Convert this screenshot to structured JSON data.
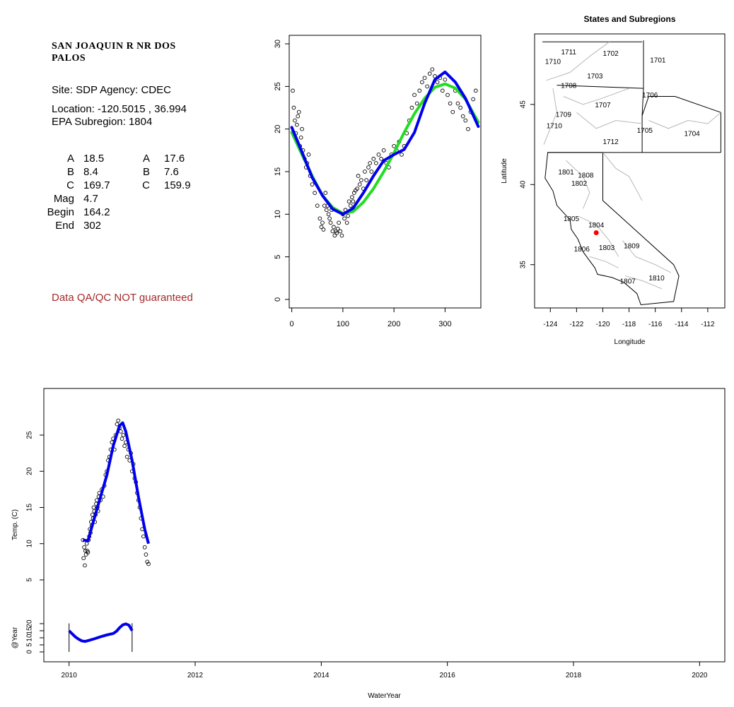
{
  "info": {
    "site_name": "SAN JOAQUIN R NR DOS PALOS",
    "site_line": "Site: SDP     Agency: CDEC",
    "location_line": "Location: -120.5015 , 36.994",
    "subregion_line": "EPA Subregion: 1804",
    "coef_left": [
      {
        "k": "A",
        "v": "18.5"
      },
      {
        "k": "B",
        "v": "8.4"
      },
      {
        "k": "C",
        "v": "169.7"
      },
      {
        "k": "Mag",
        "v": "4.7"
      },
      {
        "k": "Begin",
        "v": "164.2"
      },
      {
        "k": "End",
        "v": "302"
      }
    ],
    "coef_right": [
      {
        "k": "A",
        "v": "17.6"
      },
      {
        "k": "B",
        "v": "7.6"
      },
      {
        "k": "C",
        "v": "159.9"
      }
    ],
    "qa_note": "Data QA/QC NOT guaranteed"
  },
  "chart_data": [
    {
      "type": "scatter",
      "id": "day-of-year-fit",
      "title": "",
      "xlabel": "",
      "ylabel": "",
      "xlim": [
        -5,
        370
      ],
      "ylim": [
        -1,
        31
      ],
      "xticks": [
        0,
        100,
        200,
        300
      ],
      "yticks": [
        0,
        5,
        10,
        15,
        20,
        25,
        30
      ],
      "series": [
        {
          "kind": "points",
          "color": "#000000",
          "x": [
            2,
            4,
            6,
            8,
            10,
            12,
            14,
            16,
            18,
            20,
            22,
            25,
            28,
            30,
            33,
            36,
            40,
            45,
            50,
            55,
            58,
            60,
            62,
            64,
            66,
            68,
            70,
            72,
            74,
            76,
            78,
            80,
            82,
            84,
            86,
            88,
            90,
            92,
            95,
            98,
            100,
            103,
            105,
            108,
            110,
            112,
            115,
            118,
            120,
            122,
            125,
            128,
            130,
            133,
            136,
            140,
            143,
            146,
            150,
            153,
            156,
            160,
            165,
            170,
            175,
            180,
            185,
            190,
            195,
            200,
            205,
            210,
            215,
            220,
            225,
            230,
            235,
            240,
            245,
            250,
            255,
            260,
            265,
            270,
            275,
            280,
            285,
            290,
            295,
            300,
            305,
            310,
            315,
            320,
            325,
            330,
            335,
            340,
            345,
            350,
            355,
            360
          ],
          "y": [
            24.5,
            22.5,
            21,
            19.5,
            20.5,
            21.5,
            22,
            18,
            19,
            20,
            17.5,
            16.5,
            15.5,
            16,
            17,
            14.5,
            13.5,
            12.5,
            11,
            9.5,
            8.5,
            9,
            8.2,
            11,
            12.5,
            10.5,
            11,
            10,
            9.5,
            9,
            10.5,
            8,
            8.5,
            7.5,
            8,
            7.8,
            8.3,
            9,
            8,
            7.5,
            10,
            9.5,
            10.5,
            9,
            9.8,
            11.5,
            11,
            12,
            11.5,
            12.5,
            12.8,
            13,
            14.5,
            13.5,
            14,
            13,
            15,
            14,
            15.5,
            16,
            15,
            16.5,
            16,
            17,
            16.5,
            17.5,
            16,
            15.5,
            17,
            18,
            17.5,
            18.5,
            17,
            18,
            19.5,
            21,
            22.5,
            24,
            23,
            24.5,
            25.5,
            26,
            25,
            26.5,
            27,
            26.2,
            25.5,
            26,
            24.5,
            25.8,
            24,
            23,
            22,
            24.5,
            23,
            22.5,
            21.5,
            21,
            20,
            22,
            23.5,
            24.5
          ]
        },
        {
          "kind": "line",
          "name": "",
          "color": "#22dd22",
          "x": [
            0,
            20,
            40,
            60,
            80,
            100,
            120,
            140,
            160,
            180,
            200,
            220,
            240,
            260,
            280,
            300,
            320,
            340,
            365
          ],
          "y": [
            19.6,
            17.0,
            14.5,
            12.2,
            10.8,
            10.1,
            10.3,
            11.4,
            13.0,
            15.0,
            17.2,
            19.6,
            21.8,
            23.6,
            24.9,
            25.3,
            24.8,
            23.5,
            20.8
          ]
        },
        {
          "kind": "line",
          "name": "",
          "color": "#0000ee",
          "x": [
            0,
            20,
            40,
            60,
            80,
            100,
            120,
            140,
            160,
            180,
            200,
            220,
            240,
            260,
            280,
            300,
            320,
            340,
            365
          ],
          "y": [
            20.2,
            17.3,
            14.3,
            12.2,
            10.6,
            10.0,
            10.7,
            12.5,
            14.5,
            16.3,
            17.0,
            17.6,
            19.6,
            23.0,
            25.8,
            26.7,
            25.5,
            23.6,
            20.3
          ]
        }
      ]
    },
    {
      "type": "map",
      "id": "states-subregions",
      "title": "States and Subregions",
      "xlabel": "Longitude",
      "ylabel": "Latitude",
      "xlim": [
        -125.2,
        -110.7
      ],
      "ylim": [
        32.3,
        49.4
      ],
      "xticks": [
        -124,
        -122,
        -120,
        -118,
        -116,
        -114,
        -112
      ],
      "yticks": [
        35,
        40,
        45
      ],
      "site_point": {
        "lon": -120.5015,
        "lat": 36.994,
        "color": "#ff0000"
      },
      "regions": [
        {
          "label": "1711",
          "lon": -122.6,
          "lat": 48.3
        },
        {
          "label": "1702",
          "lon": -119.4,
          "lat": 48.2
        },
        {
          "label": "1710",
          "lon": -123.8,
          "lat": 47.7
        },
        {
          "label": "1701",
          "lon": -115.8,
          "lat": 47.8
        },
        {
          "label": "1703",
          "lon": -120.6,
          "lat": 46.8
        },
        {
          "label": "1708",
          "lon": -122.6,
          "lat": 46.2
        },
        {
          "label": "1706",
          "lon": -116.4,
          "lat": 45.6
        },
        {
          "label": "1707",
          "lon": -120.0,
          "lat": 45.0
        },
        {
          "label": "1709",
          "lon": -123.0,
          "lat": 44.4
        },
        {
          "label": "1710",
          "lon": -123.7,
          "lat": 43.7
        },
        {
          "label": "1705",
          "lon": -116.8,
          "lat": 43.4
        },
        {
          "label": "1704",
          "lon": -113.2,
          "lat": 43.2
        },
        {
          "label": "1712",
          "lon": -119.4,
          "lat": 42.7
        },
        {
          "label": "1801",
          "lon": -122.8,
          "lat": 40.8
        },
        {
          "label": "1808",
          "lon": -121.3,
          "lat": 40.6
        },
        {
          "label": "1802",
          "lon": -121.8,
          "lat": 40.1
        },
        {
          "label": "1805",
          "lon": -122.4,
          "lat": 37.9
        },
        {
          "label": "1804",
          "lon": -120.5,
          "lat": 37.5
        },
        {
          "label": "1806",
          "lon": -121.6,
          "lat": 36.0
        },
        {
          "label": "1803",
          "lon": -119.7,
          "lat": 36.1
        },
        {
          "label": "1809",
          "lon": -117.8,
          "lat": 36.2
        },
        {
          "label": "1807",
          "lon": -118.1,
          "lat": 34.0
        },
        {
          "label": "1810",
          "lon": -115.9,
          "lat": 34.2
        }
      ]
    },
    {
      "type": "scatter",
      "id": "water-year-series",
      "title": "",
      "xlabel": "WaterYear",
      "ylabel": "Temp. (C)",
      "ylabel2": "@Year",
      "xlim": [
        2009.6,
        2020.4
      ],
      "ylim": [
        -1,
        30
      ],
      "xticks": [
        2010,
        2012,
        2014,
        2016,
        2018,
        2020
      ],
      "yticks": [
        5,
        10,
        15,
        20,
        25
      ],
      "yticks2": [
        0,
        5,
        10,
        15,
        20
      ],
      "series": [
        {
          "kind": "points",
          "color": "#000000",
          "x": [
            2010.22,
            2010.23,
            2010.24,
            2010.25,
            2010.26,
            2010.27,
            2010.28,
            2010.29,
            2010.3,
            2010.31,
            2010.32,
            2010.33,
            2010.34,
            2010.35,
            2010.36,
            2010.37,
            2010.38,
            2010.39,
            2010.4,
            2010.41,
            2010.42,
            2010.43,
            2010.44,
            2010.45,
            2010.46,
            2010.47,
            2010.48,
            2010.5,
            2010.52,
            2010.54,
            2010.56,
            2010.58,
            2010.6,
            2010.62,
            2010.64,
            2010.66,
            2010.68,
            2010.7,
            2010.72,
            2010.74,
            2010.76,
            2010.78,
            2010.8,
            2010.82,
            2010.84,
            2010.86,
            2010.88,
            2010.9,
            2010.92,
            2010.94,
            2010.96,
            2010.98,
            2011.0,
            2011.02,
            2011.04,
            2011.06,
            2011.08,
            2011.1,
            2011.12,
            2011.14,
            2011.16,
            2011.18,
            2011.2,
            2011.22,
            2011.24,
            2011.26
          ],
          "y": [
            10.5,
            8,
            9.5,
            7,
            9,
            8.5,
            10,
            9,
            8.8,
            10.5,
            11,
            12,
            11.5,
            13,
            12.5,
            14,
            13.5,
            15,
            14.5,
            13,
            14,
            15.5,
            16,
            15,
            14.5,
            16.5,
            17,
            16,
            17.5,
            16.5,
            18,
            19.5,
            20,
            21.5,
            22,
            23,
            24,
            24.5,
            23,
            25,
            26.5,
            27,
            26,
            25.5,
            24.5,
            25,
            23.5,
            24,
            22,
            23,
            21.5,
            22.5,
            20,
            21,
            19,
            18.5,
            17,
            16,
            15,
            13.5,
            12,
            11,
            9.5,
            8.5,
            7.5,
            7.2
          ]
        },
        {
          "kind": "line",
          "name": "",
          "color": "#0000ee",
          "x": [
            2010.22,
            2010.3,
            2010.4,
            2010.5,
            2010.6,
            2010.7,
            2010.8,
            2010.85,
            2010.9,
            2011.0,
            2011.1,
            2011.2,
            2011.26
          ],
          "y": [
            10.5,
            10.4,
            13.5,
            16.5,
            19.5,
            23.5,
            26.3,
            26.7,
            25.5,
            21.5,
            16.5,
            12,
            10
          ]
        },
        {
          "kind": "line",
          "name": "",
          "color": "#0000ee",
          "x": [
            2010.0,
            2010.05,
            2010.1,
            2010.15,
            2010.2,
            2010.25,
            2010.3,
            2010.4,
            2010.5,
            2010.6,
            2010.7,
            2010.75,
            2010.8,
            2010.85,
            2010.9,
            2010.95,
            2011.0
          ],
          "y": [
            20.2,
            17.3,
            14.3,
            12.2,
            10.6,
            10.0,
            10.7,
            12.5,
            14.5,
            16.3,
            17.6,
            19.6,
            23.0,
            25.8,
            26.7,
            25.5,
            20.3
          ]
        }
      ]
    }
  ]
}
